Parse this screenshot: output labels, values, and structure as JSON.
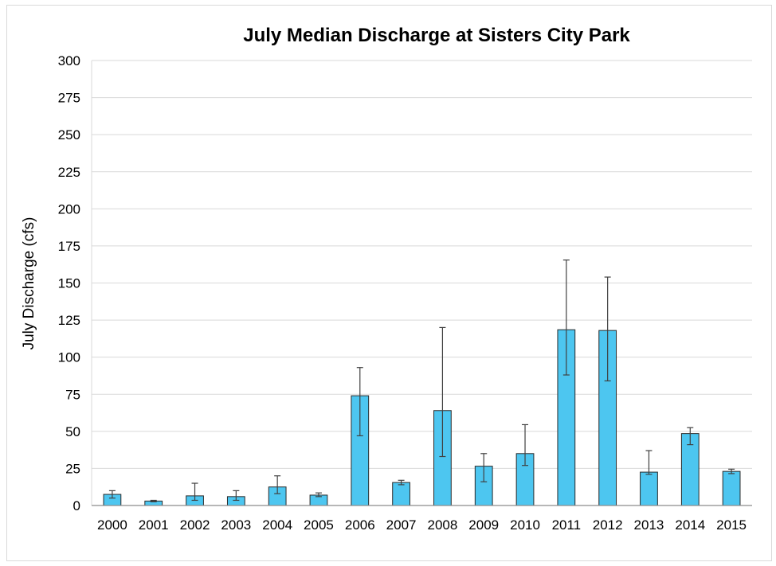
{
  "chart_data": {
    "type": "bar",
    "title": "July Median Discharge at Sisters City Park",
    "xlabel": "",
    "ylabel": "July Discharge (cfs)",
    "ylim": [
      0,
      300
    ],
    "yticks": [
      0,
      25,
      50,
      75,
      100,
      125,
      150,
      175,
      200,
      225,
      250,
      275,
      300
    ],
    "grid": true,
    "legend": "none",
    "categories": [
      "2000",
      "2001",
      "2002",
      "2003",
      "2004",
      "2005",
      "2006",
      "2007",
      "2008",
      "2009",
      "2010",
      "2011",
      "2012",
      "2013",
      "2014",
      "2015"
    ],
    "values": [
      7.5,
      3,
      6.5,
      6,
      12.5,
      7,
      74,
      15.5,
      64,
      26.5,
      35,
      118.5,
      118,
      22.5,
      48.5,
      23
    ],
    "error_low": [
      5,
      2.5,
      3.5,
      3.5,
      8,
      6,
      47,
      14,
      33,
      16,
      27,
      88,
      84,
      21,
      41,
      21.5
    ],
    "error_high": [
      10,
      3.5,
      15,
      10,
      20,
      8.5,
      93,
      17,
      120,
      35,
      54.5,
      165.5,
      154,
      37,
      52.5,
      24.5
    ],
    "colors": {
      "bar_fill": "#4dc6f0",
      "bar_stroke": "#2a2a2a",
      "grid": "#d9d9d9",
      "error_bar": "#404040"
    }
  }
}
